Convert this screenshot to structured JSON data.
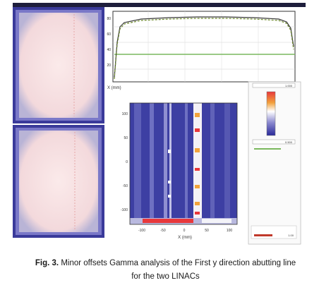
{
  "figure": {
    "profile_plot": {
      "x_axis_label": "X (mm)",
      "y_tick_labels": [
        "80",
        "60",
        "40",
        "20"
      ]
    },
    "gamma_map": {
      "y_tick_labels": [
        "100",
        "50",
        "0",
        "-50",
        "-100"
      ],
      "x_tick_labels": [
        "-100",
        "-50",
        "0",
        "50",
        "100"
      ],
      "x_axis_label": "X (mm)"
    },
    "color_panel": {
      "top_value": "1.000",
      "mid_value": "0.500",
      "bottom_value": "1.00"
    }
  },
  "caption": {
    "label": "Fig. 3.",
    "line1": "Minor offsets Gamma analysis of the First y direction abutting line",
    "line2": "for the two LINACs"
  }
}
